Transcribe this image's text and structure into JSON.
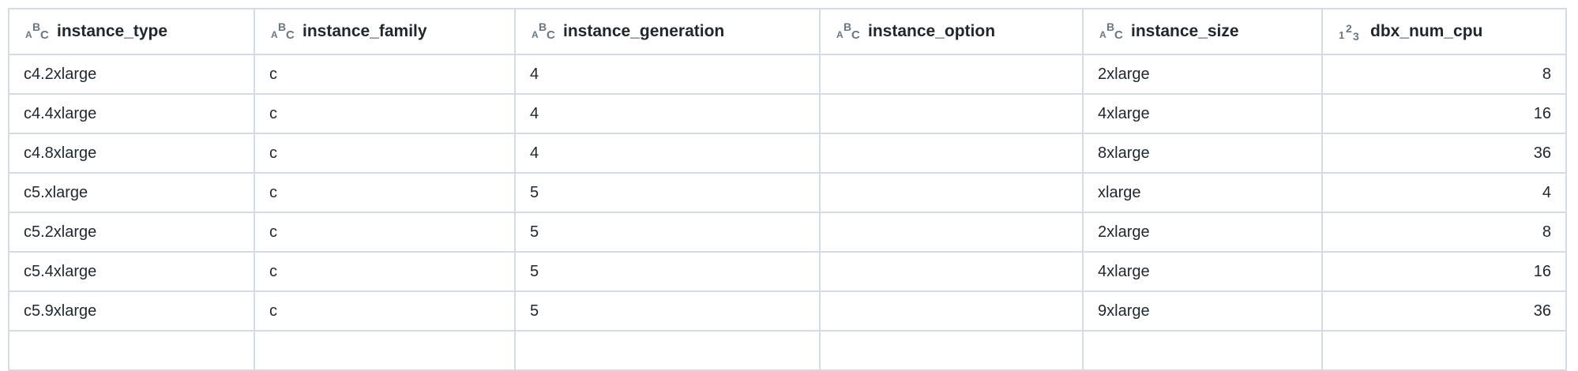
{
  "columns": [
    {
      "name": "instance_type",
      "type_icon": "string-type-icon"
    },
    {
      "name": "instance_family",
      "type_icon": "string-type-icon"
    },
    {
      "name": "instance_generation",
      "type_icon": "string-type-icon"
    },
    {
      "name": "instance_option",
      "type_icon": "string-type-icon"
    },
    {
      "name": "instance_size",
      "type_icon": "string-type-icon"
    },
    {
      "name": "dbx_num_cpu",
      "type_icon": "integer-type-icon"
    }
  ],
  "rows": [
    [
      "c4.2xlarge",
      "c",
      "4",
      "",
      "2xlarge",
      "8"
    ],
    [
      "c4.4xlarge",
      "c",
      "4",
      "",
      "4xlarge",
      "16"
    ],
    [
      "c4.8xlarge",
      "c",
      "4",
      "",
      "8xlarge",
      "36"
    ],
    [
      "c5.xlarge",
      "c",
      "5",
      "",
      "xlarge",
      "4"
    ],
    [
      "c5.2xlarge",
      "c",
      "5",
      "",
      "2xlarge",
      "8"
    ],
    [
      "c5.4xlarge",
      "c",
      "5",
      "",
      "4xlarge",
      "16"
    ],
    [
      "c5.9xlarge",
      "c",
      "5",
      "",
      "9xlarge",
      "36"
    ],
    [
      "",
      "",
      "",
      "",
      "",
      ""
    ]
  ]
}
